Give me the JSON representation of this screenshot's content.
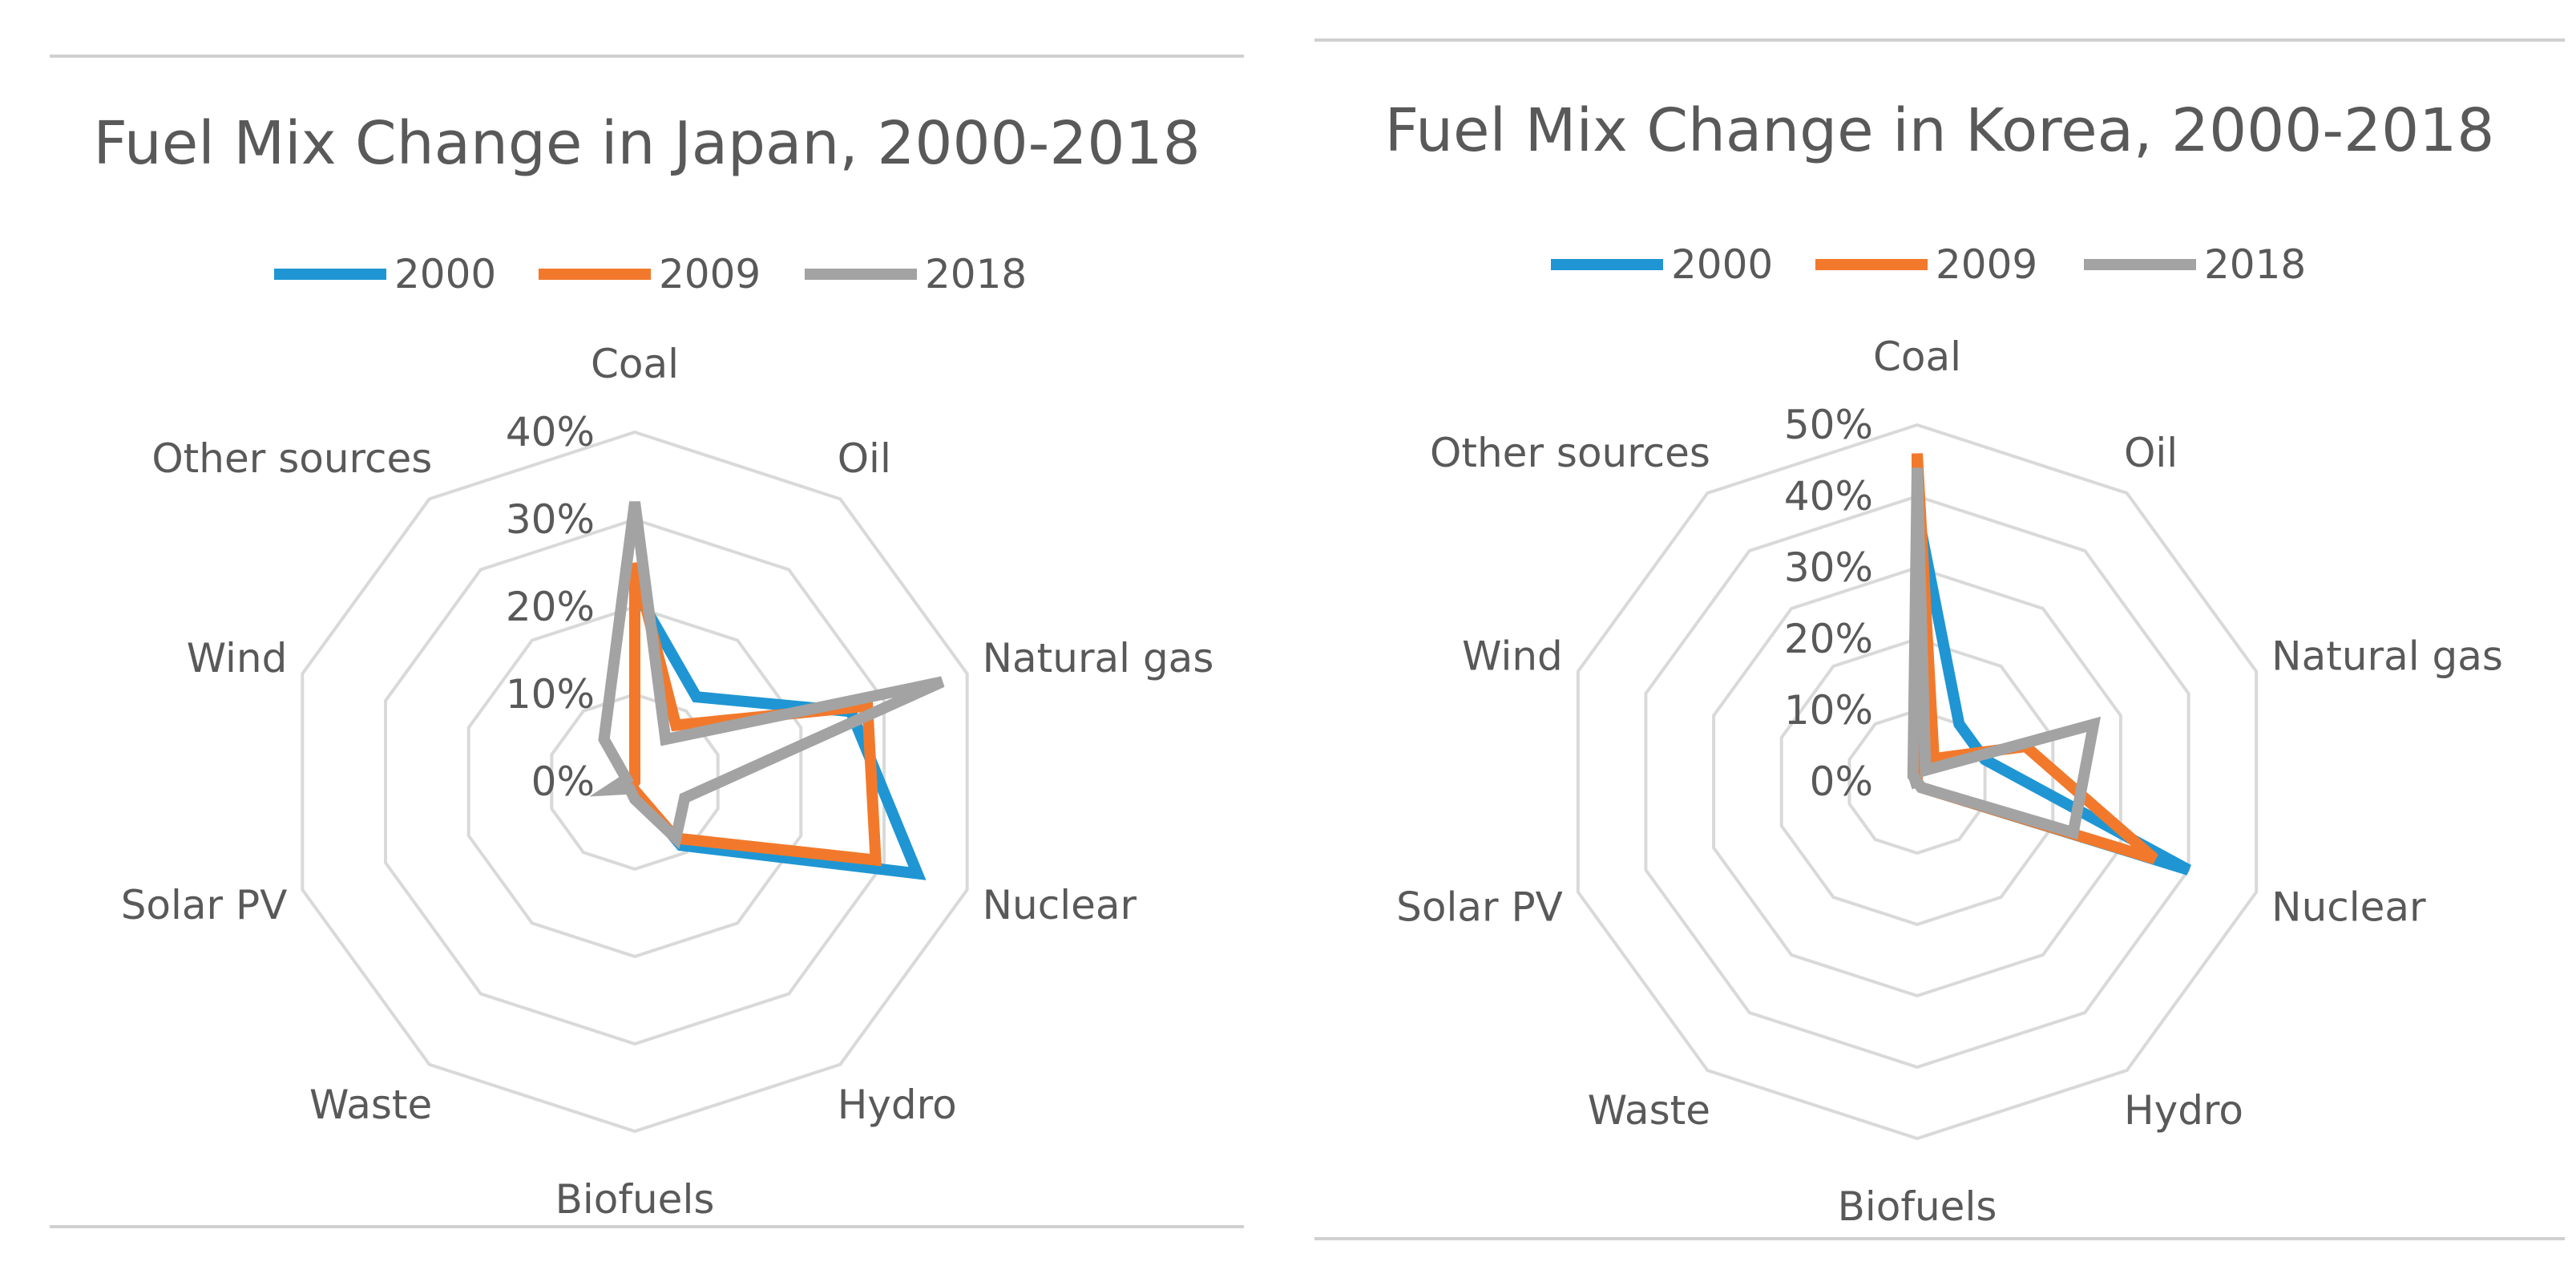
{
  "chart_data": [
    {
      "type": "radar",
      "title": "Fuel Mix Change in Japan, 2000-2018",
      "categories": [
        "Coal",
        "Oil",
        "Natural gas",
        "Nuclear",
        "Hydro",
        "Biofuels",
        "Waste",
        "Solar PV",
        "Wind",
        "Other sources"
      ],
      "series": [
        {
          "name": "2000",
          "values": [
            22,
            12,
            26,
            34,
            9,
            1,
            1,
            0,
            0,
            0
          ]
        },
        {
          "name": "2009",
          "values": [
            25,
            8,
            28,
            29,
            8,
            1,
            1,
            0,
            0,
            0
          ]
        },
        {
          "name": "2018",
          "values": [
            32,
            6,
            37,
            6,
            8,
            2,
            1,
            3,
            1,
            6
          ]
        }
      ],
      "rlim": [
        0,
        40
      ],
      "ticks": [
        "0%",
        "10%",
        "20%",
        "30%",
        "40%"
      ],
      "legend": "top",
      "grid": true
    },
    {
      "type": "radar",
      "title": "Fuel Mix Change in Korea, 2000-2018",
      "categories": [
        "Coal",
        "Oil",
        "Natural gas",
        "Nuclear",
        "Hydro",
        "Biofuels",
        "Waste",
        "Solar PV",
        "Wind",
        "Other sources"
      ],
      "series": [
        {
          "name": "2000",
          "values": [
            38,
            10,
            10,
            40,
            1,
            0,
            0,
            0,
            0,
            0
          ]
        },
        {
          "name": "2009",
          "values": [
            46,
            4,
            16,
            35,
            1,
            0,
            0,
            0,
            0,
            0
          ]
        },
        {
          "name": "2018",
          "values": [
            44,
            2,
            26,
            23,
            1,
            0,
            0,
            1,
            0,
            1
          ]
        }
      ],
      "rlim": [
        0,
        50
      ],
      "ticks": [
        "0%",
        "10%",
        "20%",
        "30%",
        "40%",
        "50%"
      ],
      "legend": "top",
      "grid": true
    }
  ],
  "colors": {
    "series": [
      "#1f96d3",
      "#f2792b",
      "#a3a3a3"
    ],
    "grid": "#d9d9d9",
    "text": "#595959",
    "rule": "#d0d0d0"
  }
}
